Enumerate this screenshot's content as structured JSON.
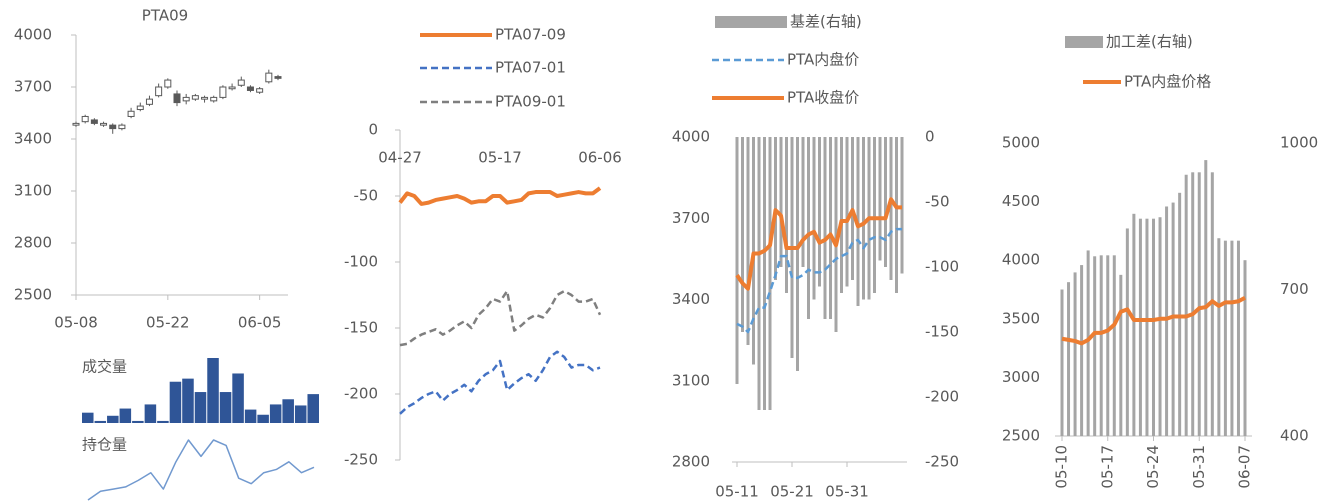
{
  "chart_data": [
    {
      "type": "candlestick",
      "title": "PTA09",
      "categories": [
        "05-08",
        null,
        null,
        null,
        null,
        null,
        null,
        null,
        null,
        null,
        "05-22",
        null,
        null,
        null,
        null,
        null,
        null,
        null,
        null,
        null,
        "06-05",
        null,
        null
      ],
      "open": [
        3480,
        3500,
        3510,
        3480,
        3480,
        3460,
        3530,
        3570,
        3600,
        3650,
        3700,
        3660,
        3620,
        3630,
        3630,
        3620,
        3640,
        3690,
        3710,
        3700,
        3670,
        3730,
        3760
      ],
      "high": [
        3500,
        3540,
        3520,
        3500,
        3490,
        3490,
        3580,
        3610,
        3650,
        3720,
        3750,
        3680,
        3660,
        3660,
        3650,
        3650,
        3710,
        3720,
        3760,
        3710,
        3700,
        3800,
        3770
      ],
      "low": [
        3470,
        3490,
        3480,
        3470,
        3430,
        3450,
        3520,
        3560,
        3590,
        3640,
        3690,
        3590,
        3600,
        3620,
        3610,
        3610,
        3630,
        3680,
        3700,
        3670,
        3660,
        3720,
        3740
      ],
      "close": [
        3490,
        3530,
        3490,
        3490,
        3460,
        3480,
        3560,
        3590,
        3630,
        3700,
        3740,
        3610,
        3640,
        3650,
        3640,
        3640,
        3700,
        3700,
        3740,
        3680,
        3690,
        3780,
        3750
      ],
      "color": "#595959",
      "ylim": [
        2500,
        4000
      ],
      "yticks": [
        2500,
        2800,
        3100,
        3400,
        3700,
        4000
      ]
    },
    {
      "type": "bar",
      "title": "成交量",
      "color": "#2f5597",
      "values": [
        10,
        2,
        7,
        14,
        2,
        18,
        2,
        40,
        43,
        30,
        63,
        30,
        48,
        13,
        8,
        18,
        23,
        17,
        28
      ]
    },
    {
      "type": "line",
      "title": "持仓量",
      "color": "#7199cf",
      "values": [
        0,
        8,
        10,
        12,
        18,
        25,
        10,
        35,
        55,
        40,
        55,
        50,
        20,
        15,
        25,
        28,
        35,
        25,
        30
      ]
    },
    {
      "type": "line",
      "categories": [
        "04-27",
        null,
        null,
        null,
        null,
        null,
        null,
        null,
        null,
        null,
        null,
        null,
        null,
        null,
        "05-17",
        null,
        null,
        null,
        null,
        null,
        null,
        null,
        null,
        null,
        null,
        null,
        null,
        null,
        "06-06"
      ],
      "ylim": [
        -250,
        0
      ],
      "yticks": [
        -250,
        -200,
        -150,
        -100,
        -50,
        0
      ],
      "series": [
        {
          "name": "PTA07-09",
          "color": "#ed7d31",
          "values": [
            -55,
            -48,
            -50,
            -56,
            -55,
            -53,
            -52,
            -51,
            -50,
            -52,
            -55,
            -54,
            -54,
            -50,
            -50,
            -55,
            -54,
            -53,
            -48,
            -47,
            -47,
            -47,
            -50,
            -49,
            -48,
            -47,
            -48,
            -48,
            -44
          ]
        },
        {
          "name": "PTA07-01",
          "color": "#4472c4",
          "dashed": true,
          "values": [
            -215,
            -210,
            -207,
            -203,
            -200,
            -198,
            -205,
            -200,
            -197,
            -193,
            -198,
            -190,
            -185,
            -182,
            -175,
            -197,
            -192,
            -188,
            -185,
            -190,
            -182,
            -172,
            -168,
            -172,
            -180,
            -178,
            -178,
            -182,
            -180
          ]
        },
        {
          "name": "PTA09-01",
          "color": "#7f7f7f",
          "dashed": true,
          "values": [
            -163,
            -162,
            -158,
            -155,
            -153,
            -151,
            -155,
            -152,
            -148,
            -145,
            -150,
            -140,
            -135,
            -128,
            -130,
            -122,
            -152,
            -148,
            -143,
            -140,
            -142,
            -135,
            -125,
            -122,
            -125,
            -130,
            -130,
            -128,
            -140
          ]
        }
      ]
    },
    {
      "type": "combo",
      "categories": [
        "05-11",
        null,
        null,
        null,
        null,
        null,
        null,
        null,
        null,
        null,
        "05-21",
        null,
        null,
        null,
        null,
        null,
        null,
        null,
        null,
        null,
        "05-31",
        null,
        null,
        null,
        null,
        null,
        null,
        null,
        null,
        null,
        null
      ],
      "ylim": [
        2800,
        4000
      ],
      "yticks": [
        2800,
        3100,
        3400,
        3700,
        4000
      ],
      "y2lim": [
        -250,
        0
      ],
      "y2ticks": [
        -250,
        -200,
        -150,
        -100,
        -50,
        0
      ],
      "series": [
        {
          "name": "基差(右轴)",
          "type": "bar",
          "axis": "y2",
          "color": "#a5a5a5",
          "values": [
            -190,
            -150,
            -160,
            -175,
            -210,
            -210,
            -210,
            -110,
            -100,
            -120,
            -170,
            -180,
            -100,
            -140,
            -125,
            -115,
            -140,
            -140,
            -150,
            -120,
            -115,
            -110,
            -130,
            -125,
            -125,
            -120,
            -95,
            -100,
            -110,
            -120,
            -105
          ]
        },
        {
          "name": "PTA内盘价",
          "type": "line",
          "color": "#5b9bd5",
          "dashed": true,
          "values": [
            3310,
            3300,
            3280,
            3330,
            3370,
            3370,
            3430,
            3490,
            3560,
            3560,
            3480,
            3480,
            3490,
            3510,
            3500,
            3500,
            3510,
            3530,
            3550,
            3560,
            3570,
            3610,
            3620,
            3590,
            3620,
            3630,
            3630,
            3620,
            3650,
            3660,
            3660
          ]
        },
        {
          "name": "PTA收盘价",
          "type": "line",
          "color": "#ed7d31",
          "values": [
            3490,
            3460,
            3440,
            3570,
            3570,
            3580,
            3600,
            3730,
            3710,
            3590,
            3590,
            3590,
            3620,
            3640,
            3650,
            3610,
            3620,
            3640,
            3600,
            3690,
            3690,
            3730,
            3670,
            3680,
            3700,
            3700,
            3700,
            3700,
            3770,
            3740,
            3740
          ]
        }
      ]
    },
    {
      "type": "combo",
      "categories": [
        "05-10",
        null,
        null,
        null,
        null,
        null,
        null,
        "05-17",
        null,
        null,
        null,
        null,
        null,
        null,
        "05-24",
        null,
        null,
        null,
        null,
        null,
        null,
        "05-31",
        null,
        null,
        null,
        null,
        null,
        null,
        "06-07"
      ],
      "ylim": [
        2500,
        5000
      ],
      "yticks": [
        2500,
        3000,
        3500,
        4000,
        4500,
        5000
      ],
      "y2lim": [
        400,
        1000
      ],
      "y2ticks": [
        400,
        700,
        1000
      ],
      "series": [
        {
          "name": "加工差(右轴)",
          "type": "bar",
          "axis": "y2",
          "color": "#a5a5a5",
          "values": [
            700,
            715,
            735,
            750,
            780,
            768,
            770,
            770,
            770,
            730,
            825,
            855,
            845,
            845,
            845,
            848,
            870,
            878,
            898,
            935,
            940,
            940,
            965,
            940,
            805,
            800,
            800,
            800,
            760
          ]
        },
        {
          "name": "PTA内盘价格",
          "type": "line",
          "color": "#ed7d31",
          "values": [
            3330,
            3320,
            3310,
            3290,
            3320,
            3380,
            3380,
            3400,
            3450,
            3560,
            3580,
            3490,
            3490,
            3490,
            3490,
            3500,
            3500,
            3520,
            3520,
            3520,
            3540,
            3590,
            3600,
            3650,
            3610,
            3640,
            3640,
            3650,
            3680
          ]
        }
      ]
    }
  ]
}
